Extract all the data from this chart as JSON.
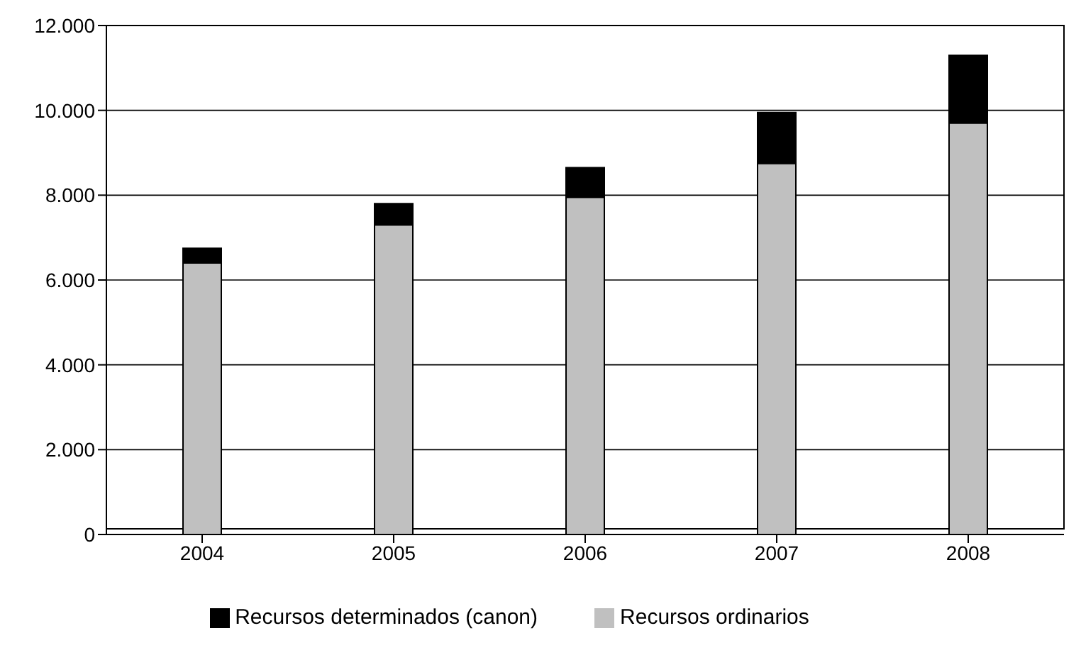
{
  "chart_data": {
    "type": "bar",
    "stacked": true,
    "categories": [
      "2004",
      "2005",
      "2006",
      "2007",
      "2008"
    ],
    "series": [
      {
        "name": "Recursos ordinarios",
        "color": "#c0c0c0",
        "values": [
          6400,
          7300,
          7950,
          8750,
          9700
        ]
      },
      {
        "name": "Recursos determinados (canon)",
        "color": "#000000",
        "values": [
          350,
          500,
          700,
          1200,
          1600
        ]
      }
    ],
    "ylim": [
      0,
      12000
    ],
    "yticks": [
      {
        "value": 0,
        "label": "0"
      },
      {
        "value": 2000,
        "label": "2.000"
      },
      {
        "value": 4000,
        "label": "4.000"
      },
      {
        "value": 6000,
        "label": "6.000"
      },
      {
        "value": 8000,
        "label": "8.000"
      },
      {
        "value": 10000,
        "label": "10.000"
      },
      {
        "value": 12000,
        "label": "12.000"
      }
    ],
    "grid": "y",
    "legend": "bottom"
  }
}
